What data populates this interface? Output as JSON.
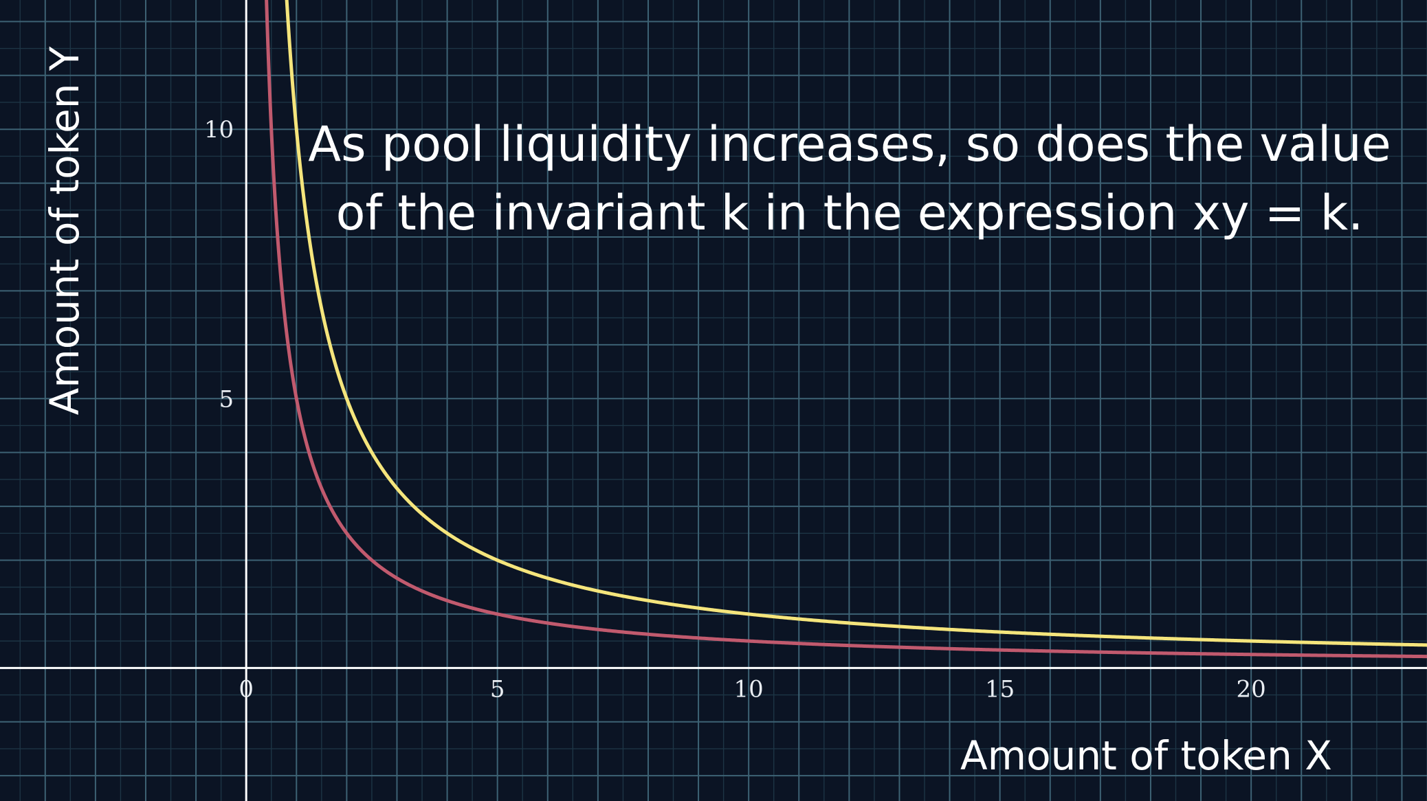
{
  "chart_data": {
    "type": "line",
    "title_lines": [
      "As pool liquidity increases, so does the value",
      "of the invariant k in the expression xy = k."
    ],
    "xlabel": "Amount of token X",
    "ylabel": "Amount of token Y",
    "xlim": [
      -4.9,
      23.5
    ],
    "ylim": [
      -2.47,
      12.4
    ],
    "x_ticks": [
      0,
      5,
      10,
      15,
      20
    ],
    "x_tick_labels": [
      "0",
      "5",
      "10",
      "15",
      "20"
    ],
    "y_ticks": [
      5,
      10
    ],
    "y_tick_labels": [
      "5",
      "10"
    ],
    "grid": true,
    "legend": "none",
    "series": [
      {
        "k": 5,
        "color": "#c15a6e",
        "formula": "y = 5/x"
      },
      {
        "k": 10,
        "color": "#f5e57c",
        "formula": "y = 10/x"
      }
    ]
  },
  "colors": {
    "background": "#0b1424",
    "grid_major": "#3d6274",
    "grid_minor": "#1d3545",
    "axis": "#ffffff"
  }
}
